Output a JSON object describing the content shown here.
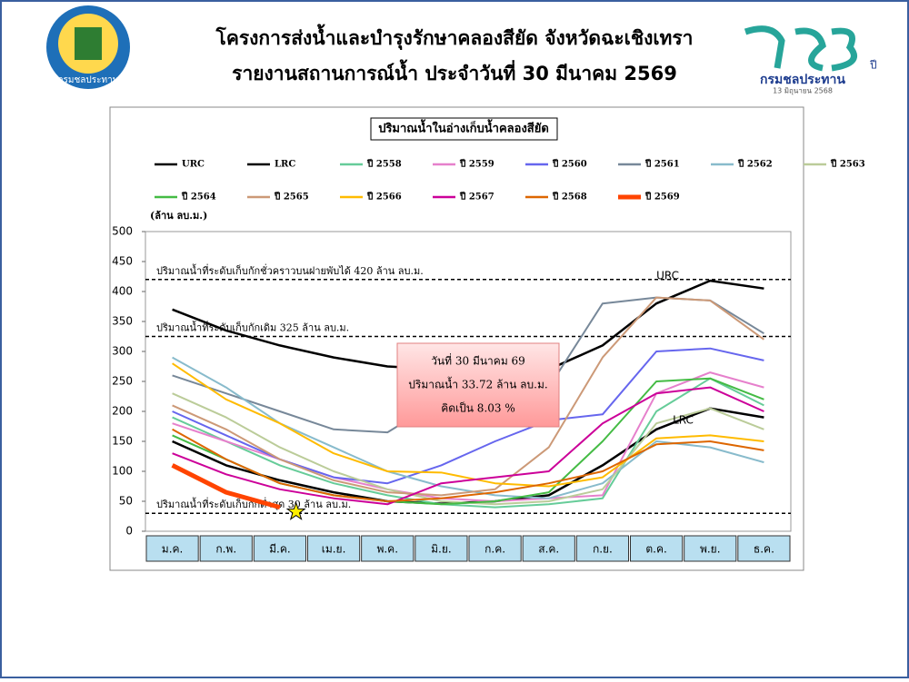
{
  "header": {
    "title_line1": "โครงการส่งน้ำและบำรุงรักษาคลองสียัด จังหวัดฉะเชิงเทรา",
    "title_line2": "รายงานสถานการณ์น้ำ ประจำวันที่ 30 มีนาคม 2569",
    "logo_left_text": "กรมชลประทาน",
    "logo_right_text": "กรมชลประทาน",
    "logo_right_date": "13 มิถุนายน 2568",
    "logo_right_year": "ปี"
  },
  "chart_data": {
    "type": "line",
    "title": "ปริมาณน้ำในอ่างเก็บน้ำคลองสียัด",
    "y_label": "(ล้าน ลบ.ม.)",
    "categories": [
      "ม.ค.",
      "ก.พ.",
      "มี.ค.",
      "เม.ย.",
      "พ.ค.",
      "มิ.ย.",
      "ก.ค.",
      "ส.ค.",
      "ก.ย.",
      "ต.ค.",
      "พ.ย.",
      "ธ.ค."
    ],
    "ylim": [
      0,
      500
    ],
    "yticks": [
      0,
      50,
      100,
      150,
      200,
      250,
      300,
      350,
      400,
      450,
      500
    ],
    "grid": false,
    "series": [
      {
        "name": "URC",
        "color": "#000000",
        "values": [
          370,
          335,
          310,
          290,
          275,
          270,
          268,
          270,
          310,
          380,
          418,
          405
        ]
      },
      {
        "name": "LRC",
        "color": "#000000",
        "values": [
          150,
          110,
          85,
          65,
          50,
          46,
          50,
          60,
          110,
          170,
          205,
          190
        ]
      },
      {
        "name": "ปี 2558",
        "color": "#66cc99",
        "values": [
          190,
          150,
          110,
          80,
          60,
          45,
          40,
          45,
          55,
          200,
          255,
          210
        ]
      },
      {
        "name": "ปี 2559",
        "color": "#e680cc",
        "values": [
          180,
          150,
          120,
          90,
          70,
          55,
          50,
          55,
          60,
          230,
          265,
          240
        ]
      },
      {
        "name": "ปี 2560",
        "color": "#6666ee",
        "values": [
          200,
          160,
          120,
          90,
          80,
          110,
          150,
          185,
          195,
          300,
          305,
          285
        ]
      },
      {
        "name": "ปี 2561",
        "color": "#778899",
        "values": [
          260,
          230,
          200,
          170,
          165,
          220,
          230,
          240,
          380,
          390,
          385,
          330
        ]
      },
      {
        "name": "ปี 2562",
        "color": "#88bbcc",
        "values": [
          290,
          240,
          180,
          140,
          100,
          75,
          60,
          55,
          80,
          150,
          140,
          115
        ]
      },
      {
        "name": "ปี 2563",
        "color": "#bbcc99",
        "values": [
          230,
          190,
          140,
          100,
          70,
          50,
          45,
          50,
          70,
          180,
          205,
          170
        ]
      },
      {
        "name": "ปี 2564",
        "color": "#44bb44",
        "values": [
          160,
          120,
          80,
          60,
          50,
          45,
          50,
          65,
          150,
          250,
          255,
          220
        ]
      },
      {
        "name": "ปี 2565",
        "color": "#cc9977",
        "values": [
          210,
          170,
          120,
          85,
          65,
          60,
          70,
          140,
          290,
          390,
          385,
          320
        ]
      },
      {
        "name": "ปี 2566",
        "color": "#ffbb00",
        "values": [
          280,
          220,
          180,
          130,
          100,
          98,
          80,
          75,
          90,
          155,
          160,
          150
        ]
      },
      {
        "name": "ปี 2567",
        "color": "#cc0099",
        "values": [
          130,
          95,
          70,
          55,
          45,
          80,
          90,
          100,
          180,
          230,
          240,
          200
        ]
      },
      {
        "name": "ปี 2568",
        "color": "#dd6600",
        "values": [
          170,
          120,
          80,
          60,
          50,
          55,
          65,
          80,
          100,
          145,
          150,
          135
        ]
      },
      {
        "name": "ปี 2569",
        "color": "#ff4400",
        "values": [
          110,
          65,
          40,
          null,
          null,
          null,
          null,
          null,
          null,
          null,
          null,
          null
        ]
      }
    ],
    "ref_lines": [
      {
        "value": 420,
        "label": "ปริมาณน้ำที่ระดับเก็บกักชั่วคราวบนฝายพับได้ 420 ล้าน ลบ.ม."
      },
      {
        "value": 325,
        "label": "ปริมาณน้ำที่ระดับเก็บกักเดิม 325 ล้าน ลบ.ม."
      },
      {
        "value": 30,
        "label": "ปริมาณน้ำที่ระดับเก็บกักต่ำสุด 30 ล้าน ลบ.ม."
      }
    ],
    "info_box": [
      "วันที่ 30 มีนาคม 69",
      "ปริมาณน้ำ 33.72 ล้าน ลบ.ม.",
      "คิดเป็น 8.03 %"
    ]
  }
}
